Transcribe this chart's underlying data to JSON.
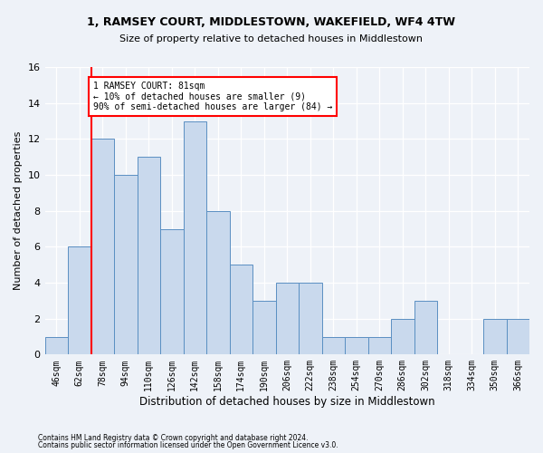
{
  "title1": "1, RAMSEY COURT, MIDDLESTOWN, WAKEFIELD, WF4 4TW",
  "title2": "Size of property relative to detached houses in Middlestown",
  "xlabel": "Distribution of detached houses by size in Middlestown",
  "ylabel": "Number of detached properties",
  "categories": [
    "46sqm",
    "62sqm",
    "78sqm",
    "94sqm",
    "110sqm",
    "126sqm",
    "142sqm",
    "158sqm",
    "174sqm",
    "190sqm",
    "206sqm",
    "222sqm",
    "238sqm",
    "254sqm",
    "270sqm",
    "286sqm",
    "302sqm",
    "318sqm",
    "334sqm",
    "350sqm",
    "366sqm"
  ],
  "values": [
    1,
    6,
    12,
    10,
    11,
    7,
    13,
    8,
    5,
    3,
    4,
    4,
    1,
    1,
    1,
    2,
    3,
    0,
    0,
    2,
    2
  ],
  "bar_color": "#c9d9ed",
  "bar_edge_color": "#5a8fc2",
  "annotation_text": "1 RAMSEY COURT: 81sqm\n← 10% of detached houses are smaller (9)\n90% of semi-detached houses are larger (84) →",
  "annotation_box_color": "white",
  "annotation_box_edge_color": "red",
  "vline_color": "red",
  "ylim": [
    0,
    16
  ],
  "yticks": [
    0,
    2,
    4,
    6,
    8,
    10,
    12,
    14,
    16
  ],
  "footnote1": "Contains HM Land Registry data © Crown copyright and database right 2024.",
  "footnote2": "Contains public sector information licensed under the Open Government Licence v3.0.",
  "bg_color": "#eef2f8",
  "plot_bg_color": "#eef2f8"
}
